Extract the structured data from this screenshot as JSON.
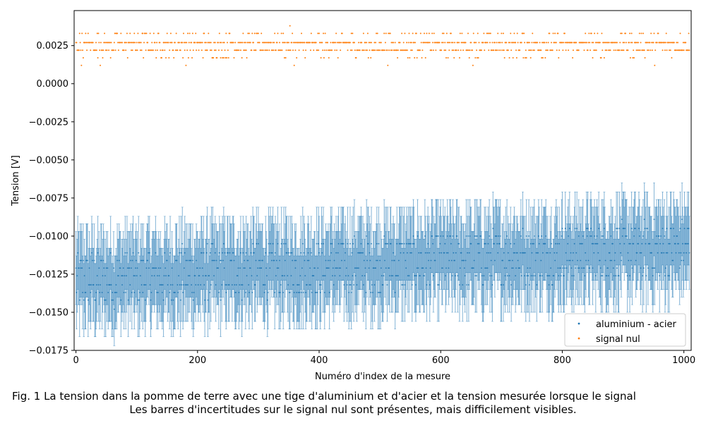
{
  "chart_data": {
    "type": "scatter",
    "xlabel": "Numéro d'index de la mesure",
    "ylabel": "Tension [V]",
    "xlim": [
      -3,
      1012
    ],
    "ylim": [
      -0.0175,
      0.0048
    ],
    "x_ticks": [
      0,
      200,
      400,
      600,
      800,
      1000
    ],
    "x_tick_labels": [
      "0",
      "200",
      "400",
      "600",
      "800",
      "1000"
    ],
    "y_ticks": [
      0.0025,
      0.0,
      -0.0025,
      -0.005,
      -0.0075,
      -0.01,
      -0.0125,
      -0.015,
      -0.0175
    ],
    "y_tick_labels": [
      "0.0025",
      "0.0000",
      "−0.0025",
      "−0.0050",
      "−0.0075",
      "−0.0100",
      "−0.0125",
      "−0.0150",
      "−0.0175"
    ],
    "legend_position": "lower-right",
    "series": [
      {
        "name": "aluminium - acier",
        "color": "#1f77b4",
        "n_points": 1010,
        "x_range": [
          0,
          1009
        ],
        "value_levels": [
          -0.0164,
          -0.0158,
          -0.0153,
          -0.0148,
          -0.0142,
          -0.0137,
          -0.0132,
          -0.0126,
          -0.0121,
          -0.0116,
          -0.0111,
          -0.0105,
          -0.01,
          -0.0095,
          -0.0089,
          -0.0084,
          -0.0079
        ],
        "trend_start": -0.0129,
        "trend_end": -0.0107,
        "error_bar": 0.0024
      },
      {
        "name": "signal nul",
        "color": "#ff7f0e",
        "n_points": 1010,
        "x_range": [
          0,
          1009
        ],
        "value_levels": [
          0.0012,
          0.0017,
          0.0022,
          0.0027,
          0.0033,
          0.0038
        ],
        "mean": 0.0026,
        "error_bar": 5e-05
      }
    ]
  },
  "caption": {
    "line1": "Fig. 1 La tension dans la pomme de terre avec une tige d'aluminium et d'acier et la tension mesurée lorsque le signal",
    "line2": "Les barres d'incertitudes sur le signal nul sont présentes, mais difficilement visibles."
  }
}
